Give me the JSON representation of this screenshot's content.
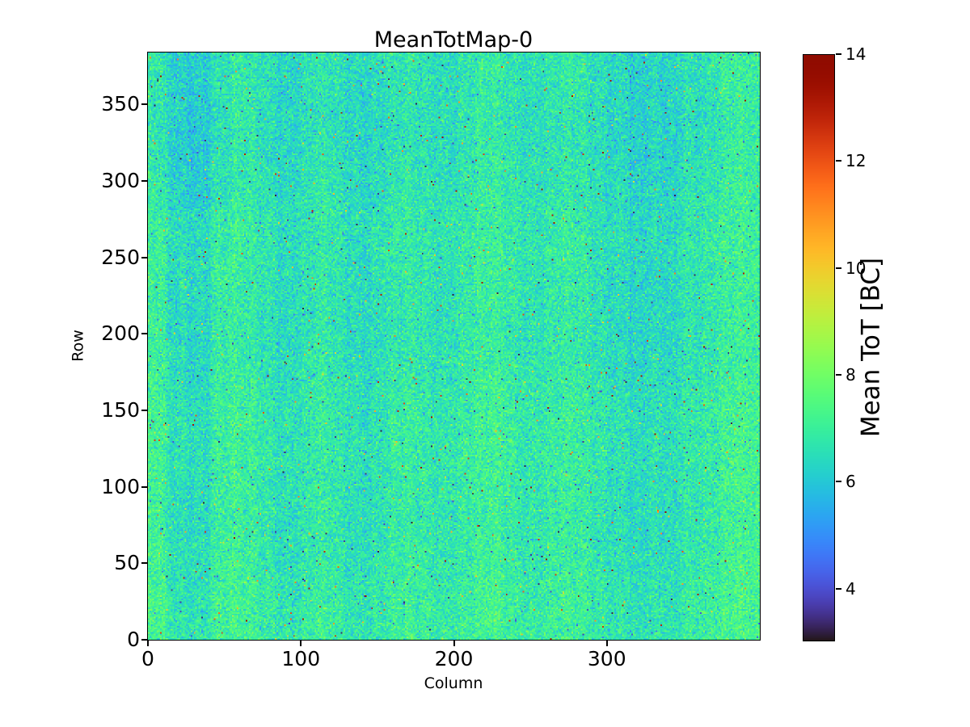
{
  "chart_data": {
    "type": "heatmap",
    "title": "MeanTotMap-0",
    "xlabel": "Column",
    "ylabel": "Row",
    "x_range": [
      0,
      400
    ],
    "y_range": [
      0,
      384
    ],
    "x_ticks": [
      0,
      100,
      200,
      300
    ],
    "y_ticks": [
      0,
      50,
      100,
      150,
      200,
      250,
      300,
      350
    ],
    "grid": "off",
    "colorbar": {
      "label": "Mean ToT [BC]",
      "vmin": 3,
      "vmax": 14,
      "ticks": [
        4,
        6,
        8,
        10,
        12,
        14
      ],
      "colormap": "turbo",
      "bottom_color": "#30123b",
      "top_color": "#7a0403"
    },
    "value_model": {
      "note": "noisy pixel map estimated from screenshot; mean ToT about 7 BC",
      "cols": 400,
      "rows": 384,
      "seed": 42,
      "mean": 6.9,
      "noise_sigma": 0.55,
      "row_slope": -0.00085,
      "col_wave": [
        [
          0.16,
          0.115,
          1.2
        ],
        [
          0.12,
          0.032,
          0.5
        ],
        [
          0.09,
          0.55,
          2.0
        ]
      ],
      "row_wave": [
        0.06,
        0.05,
        1.0
      ],
      "col_bands": [
        {
          "from": 12,
          "to": 40,
          "delta": -0.32
        },
        {
          "from": 85,
          "to": 105,
          "delta": -0.12
        },
        {
          "from": 315,
          "to": 345,
          "delta": -0.32
        },
        {
          "from": 350,
          "to": 400,
          "delta": 0.18
        },
        {
          "from": 0,
          "to": 8,
          "delta": 0.12
        }
      ],
      "corner_band": {
        "row_from": 280,
        "col_to": 55,
        "delta": -0.18
      },
      "hot_fraction": 0.005,
      "hot_min": 9.5,
      "hot_span": 4.2,
      "cold_fraction": 0.0045,
      "cold_min": 3.1,
      "cold_span": 1.6,
      "clip": [
        3.02,
        13.95
      ]
    }
  }
}
